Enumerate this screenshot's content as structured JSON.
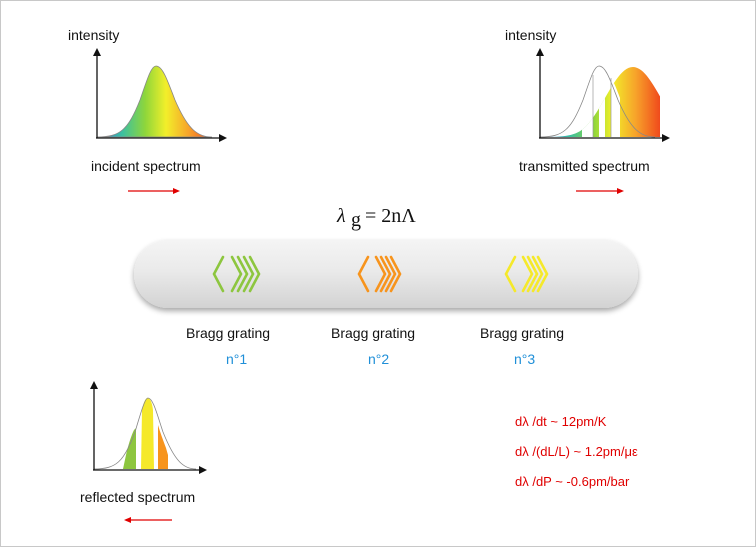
{
  "spectra": {
    "incident": {
      "axis_label": "intensity",
      "caption": "incident spectrum"
    },
    "transmitted": {
      "axis_label": "intensity",
      "caption": "transmitted spectrum"
    },
    "reflected": {
      "caption": "reflected spectrum"
    }
  },
  "equation": {
    "lambda": "λ",
    "subscript": "g",
    "rhs": "= 2nΛ"
  },
  "gratings": [
    {
      "label": "Bragg grating",
      "number": "n°1",
      "color": "#8dc63f"
    },
    {
      "label": "Bragg grating",
      "number": "n°2",
      "color": "#f7941d"
    },
    {
      "label": "Bragg grating",
      "number": "n°3",
      "color": "#f5e92a"
    }
  ],
  "sensitivities": [
    "dλ /dt ~ 12pm/K",
    "dλ /(dL/L) ~ 1.2pm/με",
    "dλ /dP ~ -0.6pm/bar"
  ],
  "colors": {
    "arrow": "#e00000",
    "label_blue": "#1f8fd8",
    "sensitivity_red": "#e00000"
  }
}
